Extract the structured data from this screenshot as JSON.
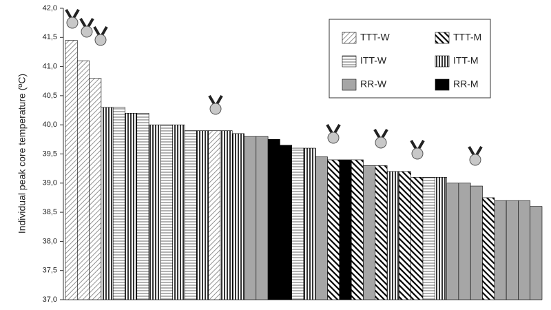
{
  "chart_data": {
    "type": "bar",
    "y_label": "Individual peak core temperature (ºC)",
    "categories": [
      null,
      null,
      null,
      null,
      null,
      null,
      null,
      null,
      null,
      null,
      null,
      null,
      null,
      null,
      null,
      null,
      null,
      null,
      null,
      null,
      null,
      null,
      null,
      null,
      null,
      null,
      null,
      null,
      null,
      null,
      null,
      null,
      null,
      null,
      null,
      null,
      null,
      null,
      null,
      null
    ],
    "series": [
      {
        "name": "TTT-W",
        "color": "#777777",
        "pattern": "hatch-thin",
        "values": [
          41.45,
          41.1,
          40.8,
          null,
          null,
          null,
          null,
          null,
          null,
          null,
          null,
          null,
          39.9,
          null,
          null,
          null,
          null,
          null,
          null,
          null,
          null,
          null,
          null,
          null,
          null,
          null,
          null,
          null,
          null,
          null,
          null,
          null,
          null,
          null,
          null,
          null,
          null,
          null,
          null,
          null
        ]
      },
      {
        "name": "TTT-M",
        "color": "#000000",
        "pattern": "hatch-thick",
        "values": [
          null,
          null,
          null,
          null,
          null,
          null,
          null,
          null,
          null,
          null,
          null,
          null,
          null,
          null,
          null,
          null,
          null,
          null,
          null,
          null,
          null,
          null,
          39.4,
          null,
          39.4,
          null,
          39.3,
          null,
          39.2,
          39.1,
          null,
          null,
          null,
          null,
          null,
          38.75,
          null,
          null,
          null,
          null
        ]
      },
      {
        "name": "ITT-W",
        "color": "#555555",
        "pattern": "horizontal",
        "values": [
          null,
          null,
          null,
          null,
          40.3,
          null,
          40.2,
          null,
          40,
          null,
          39.9,
          null,
          null,
          null,
          null,
          null,
          null,
          null,
          null,
          39.6,
          null,
          null,
          null,
          null,
          null,
          null,
          null,
          null,
          null,
          null,
          39.1,
          null,
          null,
          null,
          null,
          null,
          null,
          null,
          null,
          null
        ]
      },
      {
        "name": "ITT-M",
        "color": "#000000",
        "pattern": "vertical",
        "values": [
          null,
          null,
          null,
          40.3,
          null,
          40.2,
          null,
          40,
          null,
          40,
          null,
          39.9,
          null,
          39.9,
          39.85,
          null,
          null,
          null,
          null,
          null,
          39.6,
          null,
          null,
          null,
          null,
          null,
          null,
          39.2,
          null,
          null,
          null,
          39.1,
          null,
          null,
          null,
          null,
          null,
          null,
          null,
          null
        ]
      },
      {
        "name": "RR-W",
        "color": "#a6a6a6",
        "pattern": "solid",
        "values": [
          null,
          null,
          null,
          null,
          null,
          null,
          null,
          null,
          null,
          null,
          null,
          null,
          null,
          null,
          null,
          39.8,
          39.8,
          null,
          null,
          null,
          null,
          39.45,
          null,
          null,
          null,
          39.3,
          null,
          null,
          null,
          null,
          null,
          null,
          39,
          39,
          38.95,
          null,
          38.7,
          38.7,
          38.7,
          38.6
        ]
      },
      {
        "name": "RR-M",
        "color": "#000000",
        "pattern": "solid",
        "values": [
          null,
          null,
          null,
          null,
          null,
          null,
          null,
          null,
          null,
          null,
          null,
          null,
          null,
          null,
          null,
          null,
          null,
          39.75,
          39.65,
          null,
          null,
          null,
          null,
          39.4,
          null,
          null,
          null,
          null,
          null,
          null,
          null,
          null,
          null,
          null,
          null,
          null,
          null,
          null,
          null,
          null
        ]
      }
    ],
    "ylim": [
      37,
      42
    ],
    "yticks": [
      {
        "value": 37,
        "label": "37,0"
      },
      {
        "value": 37.5,
        "label": "37,5"
      },
      {
        "value": 38,
        "label": "38,0"
      },
      {
        "value": 38.5,
        "label": "38,5"
      },
      {
        "value": 39,
        "label": "39,0"
      },
      {
        "value": 39.5,
        "label": "39,5"
      },
      {
        "value": 40,
        "label": "40,0"
      },
      {
        "value": 40.5,
        "label": "40,5"
      },
      {
        "value": 41,
        "label": "41,0"
      },
      {
        "value": 41.5,
        "label": "41,5"
      },
      {
        "value": 42,
        "label": "42,0"
      }
    ],
    "grid": false
  }
}
